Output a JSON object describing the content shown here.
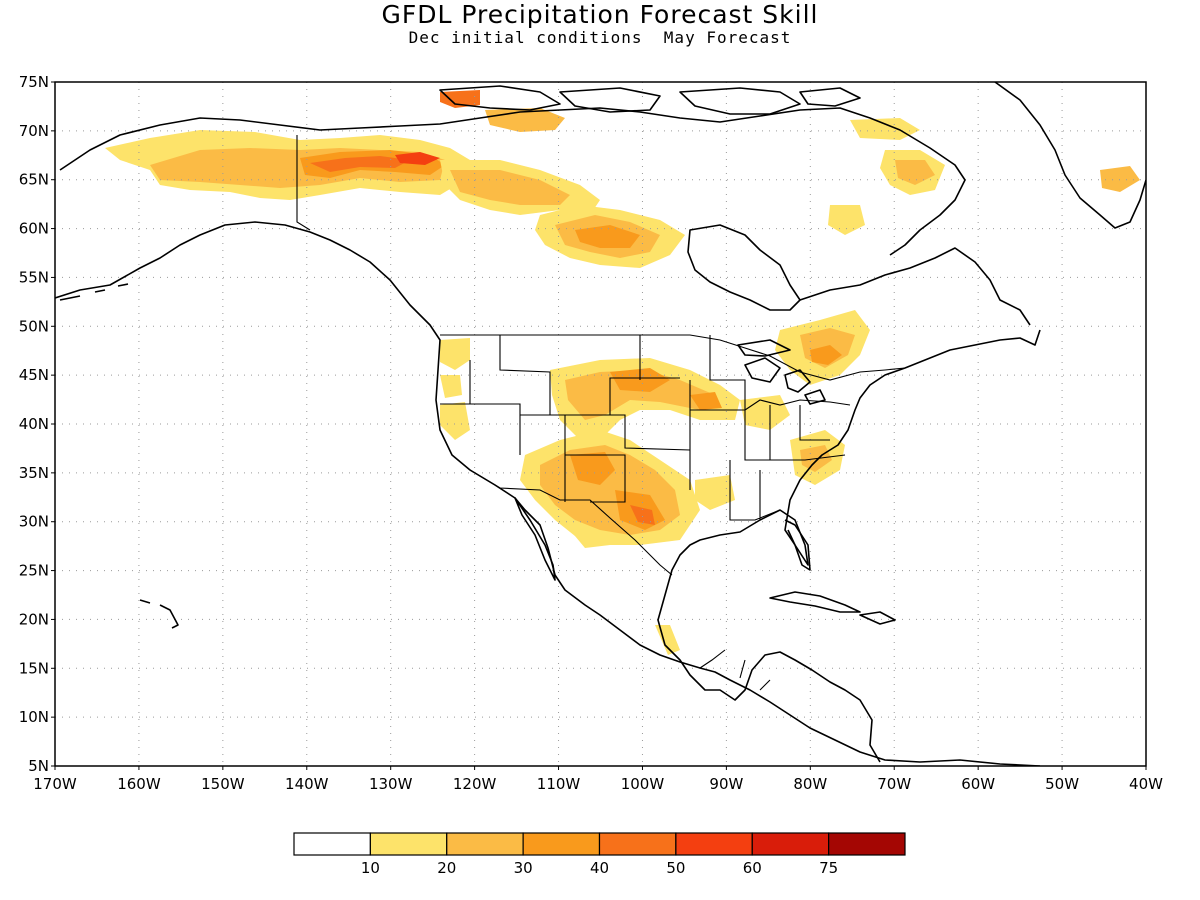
{
  "title": "GFDL Precipitation Forecast Skill",
  "subtitle": "Dec initial conditions  May Forecast",
  "map": {
    "lon_range": [
      -170,
      -40
    ],
    "lat_range": [
      5,
      75
    ],
    "lat_labels": [
      "75N",
      "70N",
      "65N",
      "60N",
      "55N",
      "50N",
      "45N",
      "40N",
      "35N",
      "30N",
      "25N",
      "20N",
      "15N",
      "10N",
      "5N"
    ],
    "lon_labels": [
      "170W",
      "160W",
      "150W",
      "140W",
      "130W",
      "120W",
      "110W",
      "100W",
      "90W",
      "80W",
      "70W",
      "60W",
      "50W",
      "40W"
    ],
    "grid": "dotted"
  },
  "legend": {
    "colors": [
      "#ffffff",
      "#fde36a",
      "#fbbb45",
      "#f99a1c",
      "#f7711a",
      "#f43f10",
      "#d91d0a",
      "#a40603"
    ],
    "labels": [
      "10",
      "20",
      "30",
      "40",
      "50",
      "60",
      "75"
    ]
  },
  "colors": {
    "coast": "#000000",
    "grid": "#9a9a9a"
  }
}
